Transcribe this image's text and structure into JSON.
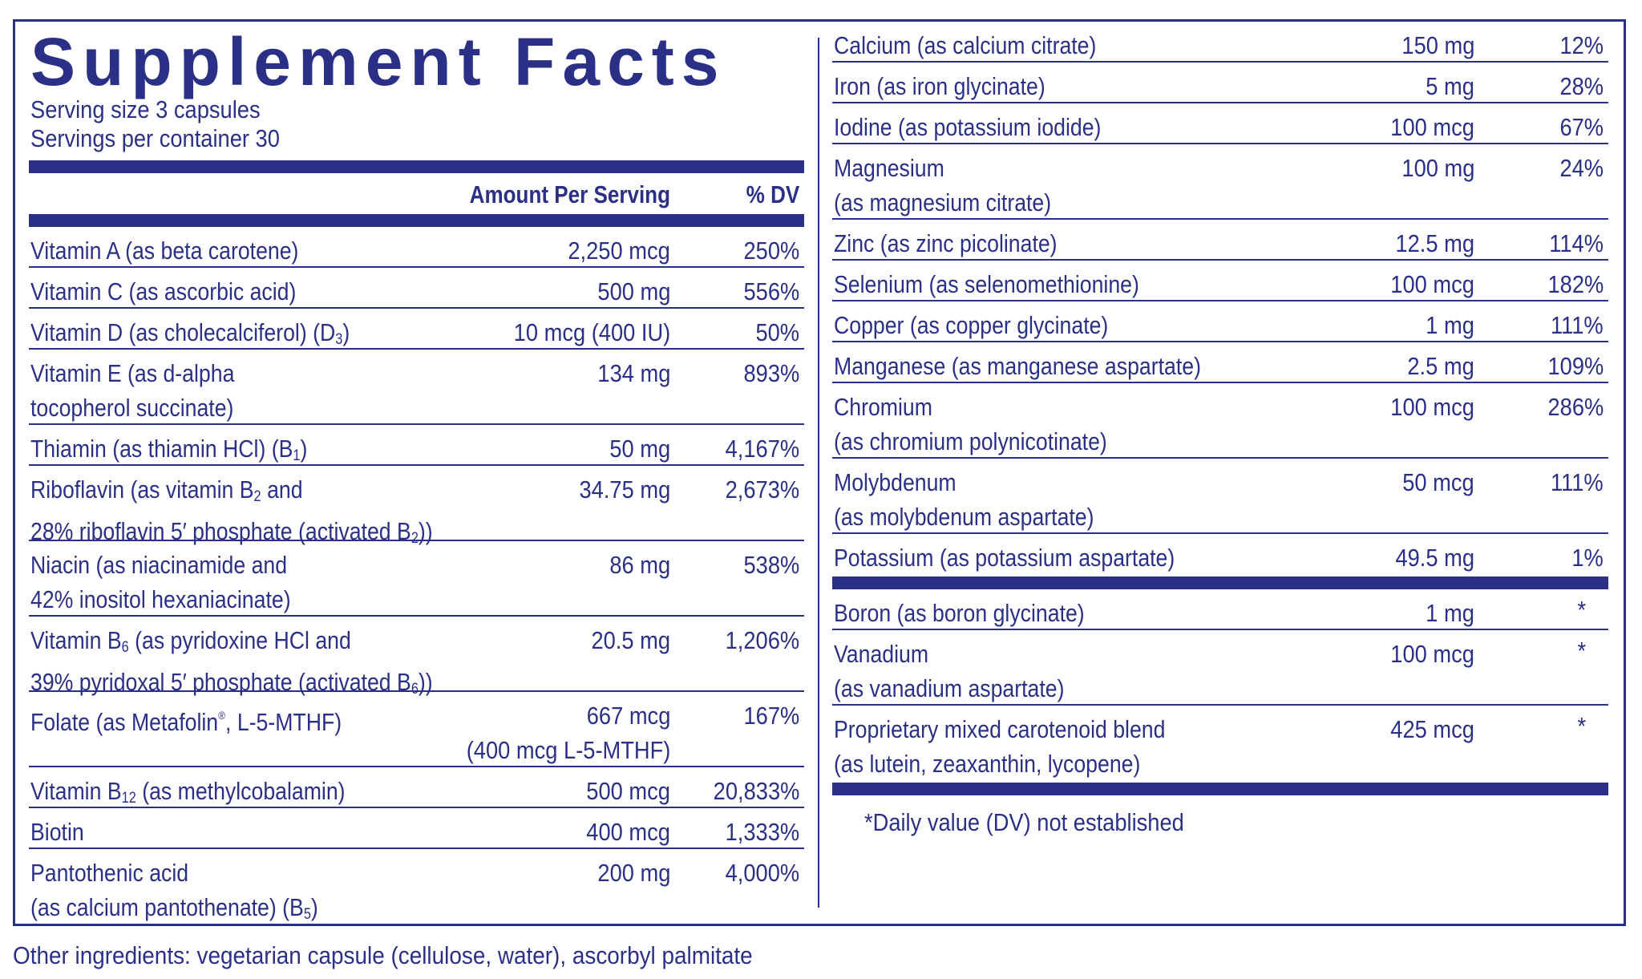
{
  "title": "Supplement Facts",
  "serving_size_label": "Serving size  3 capsules",
  "servings_per_container_label": "Servings per container  30",
  "header": {
    "amount": "Amount Per Serving",
    "dv": "% DV"
  },
  "left_rows": [
    {
      "name": [
        "Vitamin A (as beta carotene)"
      ],
      "amount": "2,250 mcg",
      "dv": "250%"
    },
    {
      "name": [
        "Vitamin C (as ascorbic acid)"
      ],
      "amount": "500 mg",
      "dv": "556%"
    },
    {
      "name": [
        "Vitamin D  (as cholecalciferol) (D₃)"
      ],
      "amount": "10 mcg (400 IU)",
      "dv": "50%"
    },
    {
      "name": [
        "Vitamin E (as d-alpha",
        "tocopherol succinate)"
      ],
      "amount": "134 mg",
      "dv": "893%"
    },
    {
      "name": [
        "Thiamin (as thiamin HCl) (B₁)"
      ],
      "amount": "50 mg",
      "dv": "4,167%"
    },
    {
      "name": [
        "Riboflavin (as vitamin B₂ and",
        "28% riboflavin 5′ phosphate (activated B₂))"
      ],
      "amount": "34.75 mg",
      "dv": "2,673%"
    },
    {
      "name": [
        "Niacin (as niacinamide and",
        "42% inositol hexaniacinate)"
      ],
      "amount": "86 mg",
      "dv": "538%"
    },
    {
      "name": [
        "Vitamin B₆ (as pyridoxine HCl and",
        "39% pyridoxal 5′ phosphate (activated B₆))"
      ],
      "amount": "20.5 mg",
      "dv": "1,206%"
    },
    {
      "name": [
        "Folate (as Metafolin®, L-5-MTHF)"
      ],
      "amount": "667 mcg",
      "amount_sub": "(400 mcg L-5-MTHF)",
      "dv": "167%"
    },
    {
      "name": [
        "Vitamin B₁₂ (as methylcobalamin)"
      ],
      "amount": "500 mcg",
      "dv": "20,833%"
    },
    {
      "name": [
        "Biotin"
      ],
      "amount": "400 mcg",
      "dv": "1,333%"
    },
    {
      "name": [
        "Pantothenic acid",
        "(as calcium pantothenate) (B₅)"
      ],
      "amount": "200 mg",
      "dv": "4,000%"
    }
  ],
  "right_rows": [
    {
      "name": [
        "Calcium (as calcium citrate)"
      ],
      "amount": "150 mg",
      "dv": "12%"
    },
    {
      "name": [
        "Iron (as iron glycinate)"
      ],
      "amount": "5 mg",
      "dv": "28%"
    },
    {
      "name": [
        "Iodine (as potassium iodide)"
      ],
      "amount": "100 mcg",
      "dv": "67%"
    },
    {
      "name": [
        "Magnesium",
        "(as magnesium citrate)"
      ],
      "amount": "100 mg",
      "dv": "24%"
    },
    {
      "name": [
        "Zinc (as zinc picolinate)"
      ],
      "amount": "12.5 mg",
      "dv": "114%"
    },
    {
      "name": [
        "Selenium (as selenomethionine)"
      ],
      "amount": "100 mcg",
      "dv": "182%"
    },
    {
      "name": [
        "Copper (as copper glycinate)"
      ],
      "amount": "1 mg",
      "dv": "111%"
    },
    {
      "name": [
        "Manganese (as manganese aspartate)"
      ],
      "amount": "2.5 mg",
      "dv": "109%"
    },
    {
      "name": [
        "Chromium",
        "(as chromium polynicotinate)"
      ],
      "amount": "100 mcg",
      "dv": "286%"
    },
    {
      "name": [
        "Molybdenum",
        "(as molybdenum aspartate)"
      ],
      "amount": "50 mcg",
      "dv": "111%"
    },
    {
      "name": [
        "Potassium (as potassium aspartate)"
      ],
      "amount": "49.5 mg",
      "dv": "1%"
    }
  ],
  "no_dv_rows": [
    {
      "name": [
        "Boron (as boron glycinate)"
      ],
      "amount": "1 mg",
      "dv": "*"
    },
    {
      "name": [
        "Vanadium",
        "(as vanadium aspartate)"
      ],
      "amount": "100 mcg",
      "dv": "*"
    },
    {
      "name": [
        "Proprietary mixed carotenoid blend",
        "(as lutein, zeaxanthin, lycopene)"
      ],
      "amount": "425 mcg",
      "dv": "*"
    }
  ],
  "footnote": "*Daily value (DV) not established",
  "other_ingredients": "Other ingredients: vegetarian capsule (cellulose, water), ascorbyl palmitate",
  "colors": {
    "ink": "#2b3087",
    "background": "#ffffff"
  }
}
